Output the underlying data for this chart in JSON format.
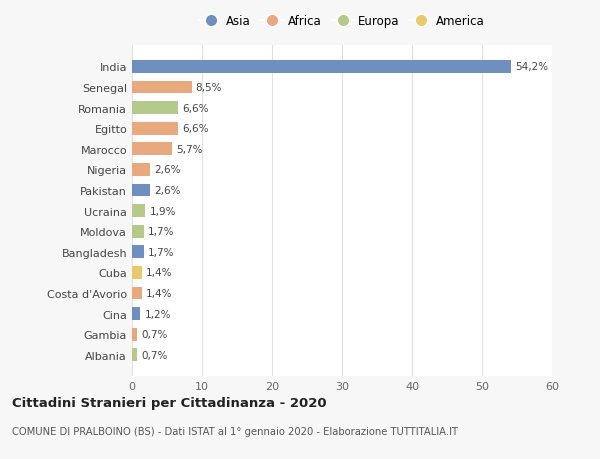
{
  "countries": [
    "India",
    "Senegal",
    "Romania",
    "Egitto",
    "Marocco",
    "Nigeria",
    "Pakistan",
    "Ucraina",
    "Moldova",
    "Bangladesh",
    "Cuba",
    "Costa d'Avorio",
    "Cina",
    "Gambia",
    "Albania"
  ],
  "values": [
    54.2,
    8.5,
    6.6,
    6.6,
    5.7,
    2.6,
    2.6,
    1.9,
    1.7,
    1.7,
    1.4,
    1.4,
    1.2,
    0.7,
    0.7
  ],
  "labels": [
    "54,2%",
    "8,5%",
    "6,6%",
    "6,6%",
    "5,7%",
    "2,6%",
    "2,6%",
    "1,9%",
    "1,7%",
    "1,7%",
    "1,4%",
    "1,4%",
    "1,2%",
    "0,7%",
    "0,7%"
  ],
  "colors": [
    "#6f8fbe",
    "#e8a97e",
    "#b5c98a",
    "#e8a97e",
    "#e8a97e",
    "#e8a97e",
    "#6f8fbe",
    "#b5c98a",
    "#b5c98a",
    "#6f8fbe",
    "#e8c96b",
    "#e8a97e",
    "#6f8fbe",
    "#e8a97e",
    "#b5c98a"
  ],
  "legend_labels": [
    "Asia",
    "Africa",
    "Europa",
    "America"
  ],
  "legend_colors": [
    "#6f8fbe",
    "#e8a97e",
    "#b5c98a",
    "#e8c96b"
  ],
  "title": "Cittadini Stranieri per Cittadinanza - 2020",
  "subtitle": "COMUNE DI PRALBOINO (BS) - Dati ISTAT al 1° gennaio 2020 - Elaborazione TUTTITALIA.IT",
  "xlim": [
    0,
    60
  ],
  "xticks": [
    0,
    10,
    20,
    30,
    40,
    50,
    60
  ],
  "bg_color": "#f7f7f7",
  "bar_bg_color": "#ffffff",
  "grid_color": "#e0e0e0"
}
